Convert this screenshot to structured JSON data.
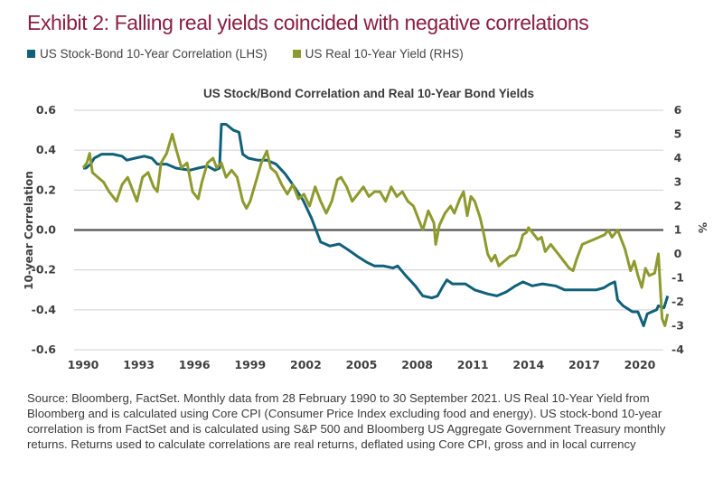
{
  "title": "Exhibit 2: Falling real yields coincided with negative correlations",
  "legend": [
    {
      "label": "US Stock-Bond 10-Year Correlation (LHS)",
      "color": "#10607a"
    },
    {
      "label": "US Real 10-Year Yield (RHS)",
      "color": "#8e9a2e"
    }
  ],
  "source": "Source: Bloomberg, FactSet. Monthly data from 28 February 1990 to 30 September 2021. US Real 10-Year Yield from Bloomberg and is calculated using Core CPI (Consumer Price Index excluding food and energy). US stock-bond 10-year correlation is from FactSet and is calculated using S&P 500 and Bloomberg US Aggregate Government Treasury monthly returns. Returns used to calculate correlations are real returns, deflated using Core CPI, gross and in local currency",
  "chart_data": {
    "type": "line",
    "title": "US Stock/Bond Correlation and Real 10-Year Bond Yields",
    "xlabel": "",
    "ylabel": "10-year Correlation",
    "y2label": "%",
    "xticks": [
      "1990",
      "1993",
      "1996",
      "1999",
      "2002",
      "2005",
      "2008",
      "2011",
      "2014",
      "2017",
      "2020"
    ],
    "yticks": [
      "0.6",
      "0.4",
      "0.2",
      "0.0",
      "-0.2",
      "-0.4",
      "-0.6"
    ],
    "y2ticks": [
      "6",
      "5",
      "4",
      "3",
      "2",
      "1",
      "0",
      "-1",
      "-2",
      "-3",
      "-4"
    ],
    "xlim": [
      1990,
      2021.75
    ],
    "ylim": [
      -0.6,
      0.6
    ],
    "y2lim": [
      -4,
      6
    ],
    "grid": true,
    "legend_position": "top-left",
    "series": [
      {
        "name": "US Stock-Bond 10-Year Correlation (LHS)",
        "axis": "left",
        "color": "#10607a",
        "points": [
          [
            1990.0,
            0.31
          ],
          [
            1990.15,
            0.31
          ],
          [
            1990.4,
            0.33
          ],
          [
            1990.6,
            0.36
          ],
          [
            1991.0,
            0.38
          ],
          [
            1991.6,
            0.38
          ],
          [
            1992.1,
            0.37
          ],
          [
            1992.35,
            0.35
          ],
          [
            1992.8,
            0.36
          ],
          [
            1993.3,
            0.37
          ],
          [
            1993.7,
            0.36
          ],
          [
            1994.0,
            0.33
          ],
          [
            1994.5,
            0.33
          ],
          [
            1995.0,
            0.31
          ],
          [
            1995.75,
            0.3
          ],
          [
            1996.2,
            0.31
          ],
          [
            1996.7,
            0.32
          ],
          [
            1997.1,
            0.3
          ],
          [
            1997.35,
            0.31
          ],
          [
            1997.45,
            0.53
          ],
          [
            1997.7,
            0.53
          ],
          [
            1998.1,
            0.5
          ],
          [
            1998.4,
            0.49
          ],
          [
            1998.6,
            0.38
          ],
          [
            1998.9,
            0.36
          ],
          [
            1999.4,
            0.35
          ],
          [
            1999.9,
            0.35
          ],
          [
            2000.4,
            0.33
          ],
          [
            2000.9,
            0.28
          ],
          [
            2001.35,
            0.22
          ],
          [
            2001.85,
            0.15
          ],
          [
            2002.3,
            0.06
          ],
          [
            2002.55,
            0.0
          ],
          [
            2002.8,
            -0.06
          ],
          [
            2003.3,
            -0.08
          ],
          [
            2003.8,
            -0.07
          ],
          [
            2004.3,
            -0.1
          ],
          [
            2004.75,
            -0.13
          ],
          [
            2005.25,
            -0.16
          ],
          [
            2005.7,
            -0.18
          ],
          [
            2006.2,
            -0.18
          ],
          [
            2006.7,
            -0.19
          ],
          [
            2006.95,
            -0.18
          ],
          [
            2007.4,
            -0.23
          ],
          [
            2007.9,
            -0.28
          ],
          [
            2008.3,
            -0.33
          ],
          [
            2008.8,
            -0.34
          ],
          [
            2009.1,
            -0.33
          ],
          [
            2009.4,
            -0.28
          ],
          [
            2009.6,
            -0.25
          ],
          [
            2009.9,
            -0.27
          ],
          [
            2010.6,
            -0.27
          ],
          [
            2011.1,
            -0.3
          ],
          [
            2011.8,
            -0.32
          ],
          [
            2012.3,
            -0.33
          ],
          [
            2012.8,
            -0.31
          ],
          [
            2013.3,
            -0.28
          ],
          [
            2013.7,
            -0.26
          ],
          [
            2014.2,
            -0.28
          ],
          [
            2014.75,
            -0.27
          ],
          [
            2015.45,
            -0.28
          ],
          [
            2015.95,
            -0.3
          ],
          [
            2016.7,
            -0.3
          ],
          [
            2017.65,
            -0.3
          ],
          [
            2018.05,
            -0.29
          ],
          [
            2018.4,
            -0.27
          ],
          [
            2018.65,
            -0.26
          ],
          [
            2018.8,
            -0.35
          ],
          [
            2019.1,
            -0.38
          ],
          [
            2019.6,
            -0.41
          ],
          [
            2019.9,
            -0.41
          ],
          [
            2020.2,
            -0.48
          ],
          [
            2020.4,
            -0.42
          ],
          [
            2020.9,
            -0.4
          ],
          [
            2021.0,
            -0.38
          ],
          [
            2021.3,
            -0.39
          ],
          [
            2021.5,
            -0.33
          ]
        ]
      },
      {
        "name": "US Real 10-Year Yield (RHS)",
        "axis": "right",
        "color": "#8e9a2e",
        "points": [
          [
            1990.0,
            3.6
          ],
          [
            1990.2,
            3.8
          ],
          [
            1990.35,
            4.2
          ],
          [
            1990.5,
            3.4
          ],
          [
            1990.8,
            3.2
          ],
          [
            1991.1,
            3.0
          ],
          [
            1991.4,
            2.6
          ],
          [
            1991.6,
            2.4
          ],
          [
            1991.8,
            2.2
          ],
          [
            1992.1,
            2.9
          ],
          [
            1992.4,
            3.2
          ],
          [
            1992.6,
            2.8
          ],
          [
            1992.9,
            2.2
          ],
          [
            1993.2,
            3.2
          ],
          [
            1993.5,
            3.4
          ],
          [
            1993.8,
            2.8
          ],
          [
            1994.0,
            2.6
          ],
          [
            1994.2,
            3.8
          ],
          [
            1994.5,
            4.2
          ],
          [
            1994.8,
            5.0
          ],
          [
            1995.0,
            4.4
          ],
          [
            1995.3,
            3.6
          ],
          [
            1995.6,
            3.8
          ],
          [
            1995.9,
            2.6
          ],
          [
            1996.2,
            2.3
          ],
          [
            1996.4,
            3.0
          ],
          [
            1996.7,
            3.8
          ],
          [
            1997.0,
            4.0
          ],
          [
            1997.2,
            3.6
          ],
          [
            1997.45,
            3.8
          ],
          [
            1997.7,
            3.2
          ],
          [
            1998.0,
            3.5
          ],
          [
            1998.3,
            3.2
          ],
          [
            1998.6,
            2.2
          ],
          [
            1998.8,
            1.9
          ],
          [
            1999.0,
            2.2
          ],
          [
            1999.3,
            3.0
          ],
          [
            1999.6,
            3.8
          ],
          [
            1999.9,
            4.3
          ],
          [
            2000.1,
            3.6
          ],
          [
            2000.4,
            3.4
          ],
          [
            2000.7,
            2.9
          ],
          [
            2001.0,
            2.5
          ],
          [
            2001.3,
            2.9
          ],
          [
            2001.6,
            2.3
          ],
          [
            2001.9,
            2.5
          ],
          [
            2002.2,
            2.0
          ],
          [
            2002.5,
            2.8
          ],
          [
            2002.8,
            2.2
          ],
          [
            2003.1,
            1.7
          ],
          [
            2003.4,
            2.2
          ],
          [
            2003.7,
            3.1
          ],
          [
            2003.9,
            3.2
          ],
          [
            2004.2,
            2.8
          ],
          [
            2004.5,
            2.2
          ],
          [
            2004.8,
            2.5
          ],
          [
            2005.1,
            2.8
          ],
          [
            2005.4,
            2.4
          ],
          [
            2005.7,
            2.6
          ],
          [
            2006.0,
            2.6
          ],
          [
            2006.3,
            2.2
          ],
          [
            2006.6,
            2.8
          ],
          [
            2006.9,
            2.4
          ],
          [
            2007.2,
            2.6
          ],
          [
            2007.5,
            2.2
          ],
          [
            2007.8,
            2.0
          ],
          [
            2008.0,
            1.6
          ],
          [
            2008.3,
            1.0
          ],
          [
            2008.6,
            1.8
          ],
          [
            2008.9,
            1.3
          ],
          [
            2009.0,
            0.4
          ],
          [
            2009.2,
            1.2
          ],
          [
            2009.5,
            1.7
          ],
          [
            2009.8,
            2.0
          ],
          [
            2010.0,
            1.7
          ],
          [
            2010.3,
            2.3
          ],
          [
            2010.5,
            2.6
          ],
          [
            2010.7,
            1.6
          ],
          [
            2010.9,
            2.4
          ],
          [
            2011.1,
            2.2
          ],
          [
            2011.4,
            1.5
          ],
          [
            2011.6,
            0.8
          ],
          [
            2011.8,
            0.0
          ],
          [
            2012.0,
            -0.3
          ],
          [
            2012.2,
            -0.05
          ],
          [
            2012.4,
            -0.5
          ],
          [
            2012.7,
            -0.3
          ],
          [
            2013.0,
            -0.1
          ],
          [
            2013.3,
            -0.05
          ],
          [
            2013.5,
            0.25
          ],
          [
            2013.7,
            0.8
          ],
          [
            2013.9,
            0.9
          ],
          [
            2014.0,
            1.1
          ],
          [
            2014.2,
            0.9
          ],
          [
            2014.5,
            0.6
          ],
          [
            2014.7,
            0.7
          ],
          [
            2014.9,
            0.1
          ],
          [
            2015.2,
            0.4
          ],
          [
            2015.4,
            0.2
          ],
          [
            2015.7,
            -0.1
          ],
          [
            2015.9,
            -0.3
          ],
          [
            2016.2,
            -0.6
          ],
          [
            2016.4,
            -0.7
          ],
          [
            2016.6,
            -0.2
          ],
          [
            2016.9,
            0.4
          ],
          [
            2017.2,
            0.5
          ],
          [
            2017.5,
            0.6
          ],
          [
            2017.8,
            0.7
          ],
          [
            2018.1,
            0.8
          ],
          [
            2018.3,
            1.0
          ],
          [
            2018.5,
            0.7
          ],
          [
            2018.8,
            1.0
          ],
          [
            2019.0,
            0.6
          ],
          [
            2019.2,
            0.2
          ],
          [
            2019.5,
            -0.7
          ],
          [
            2019.7,
            -0.3
          ],
          [
            2019.9,
            -0.9
          ],
          [
            2020.1,
            -1.4
          ],
          [
            2020.3,
            -0.6
          ],
          [
            2020.5,
            -0.9
          ],
          [
            2020.8,
            -0.8
          ],
          [
            2021.0,
            0.0
          ],
          [
            2021.2,
            -2.7
          ],
          [
            2021.35,
            -3.0
          ],
          [
            2021.5,
            -2.5
          ]
        ]
      }
    ]
  }
}
